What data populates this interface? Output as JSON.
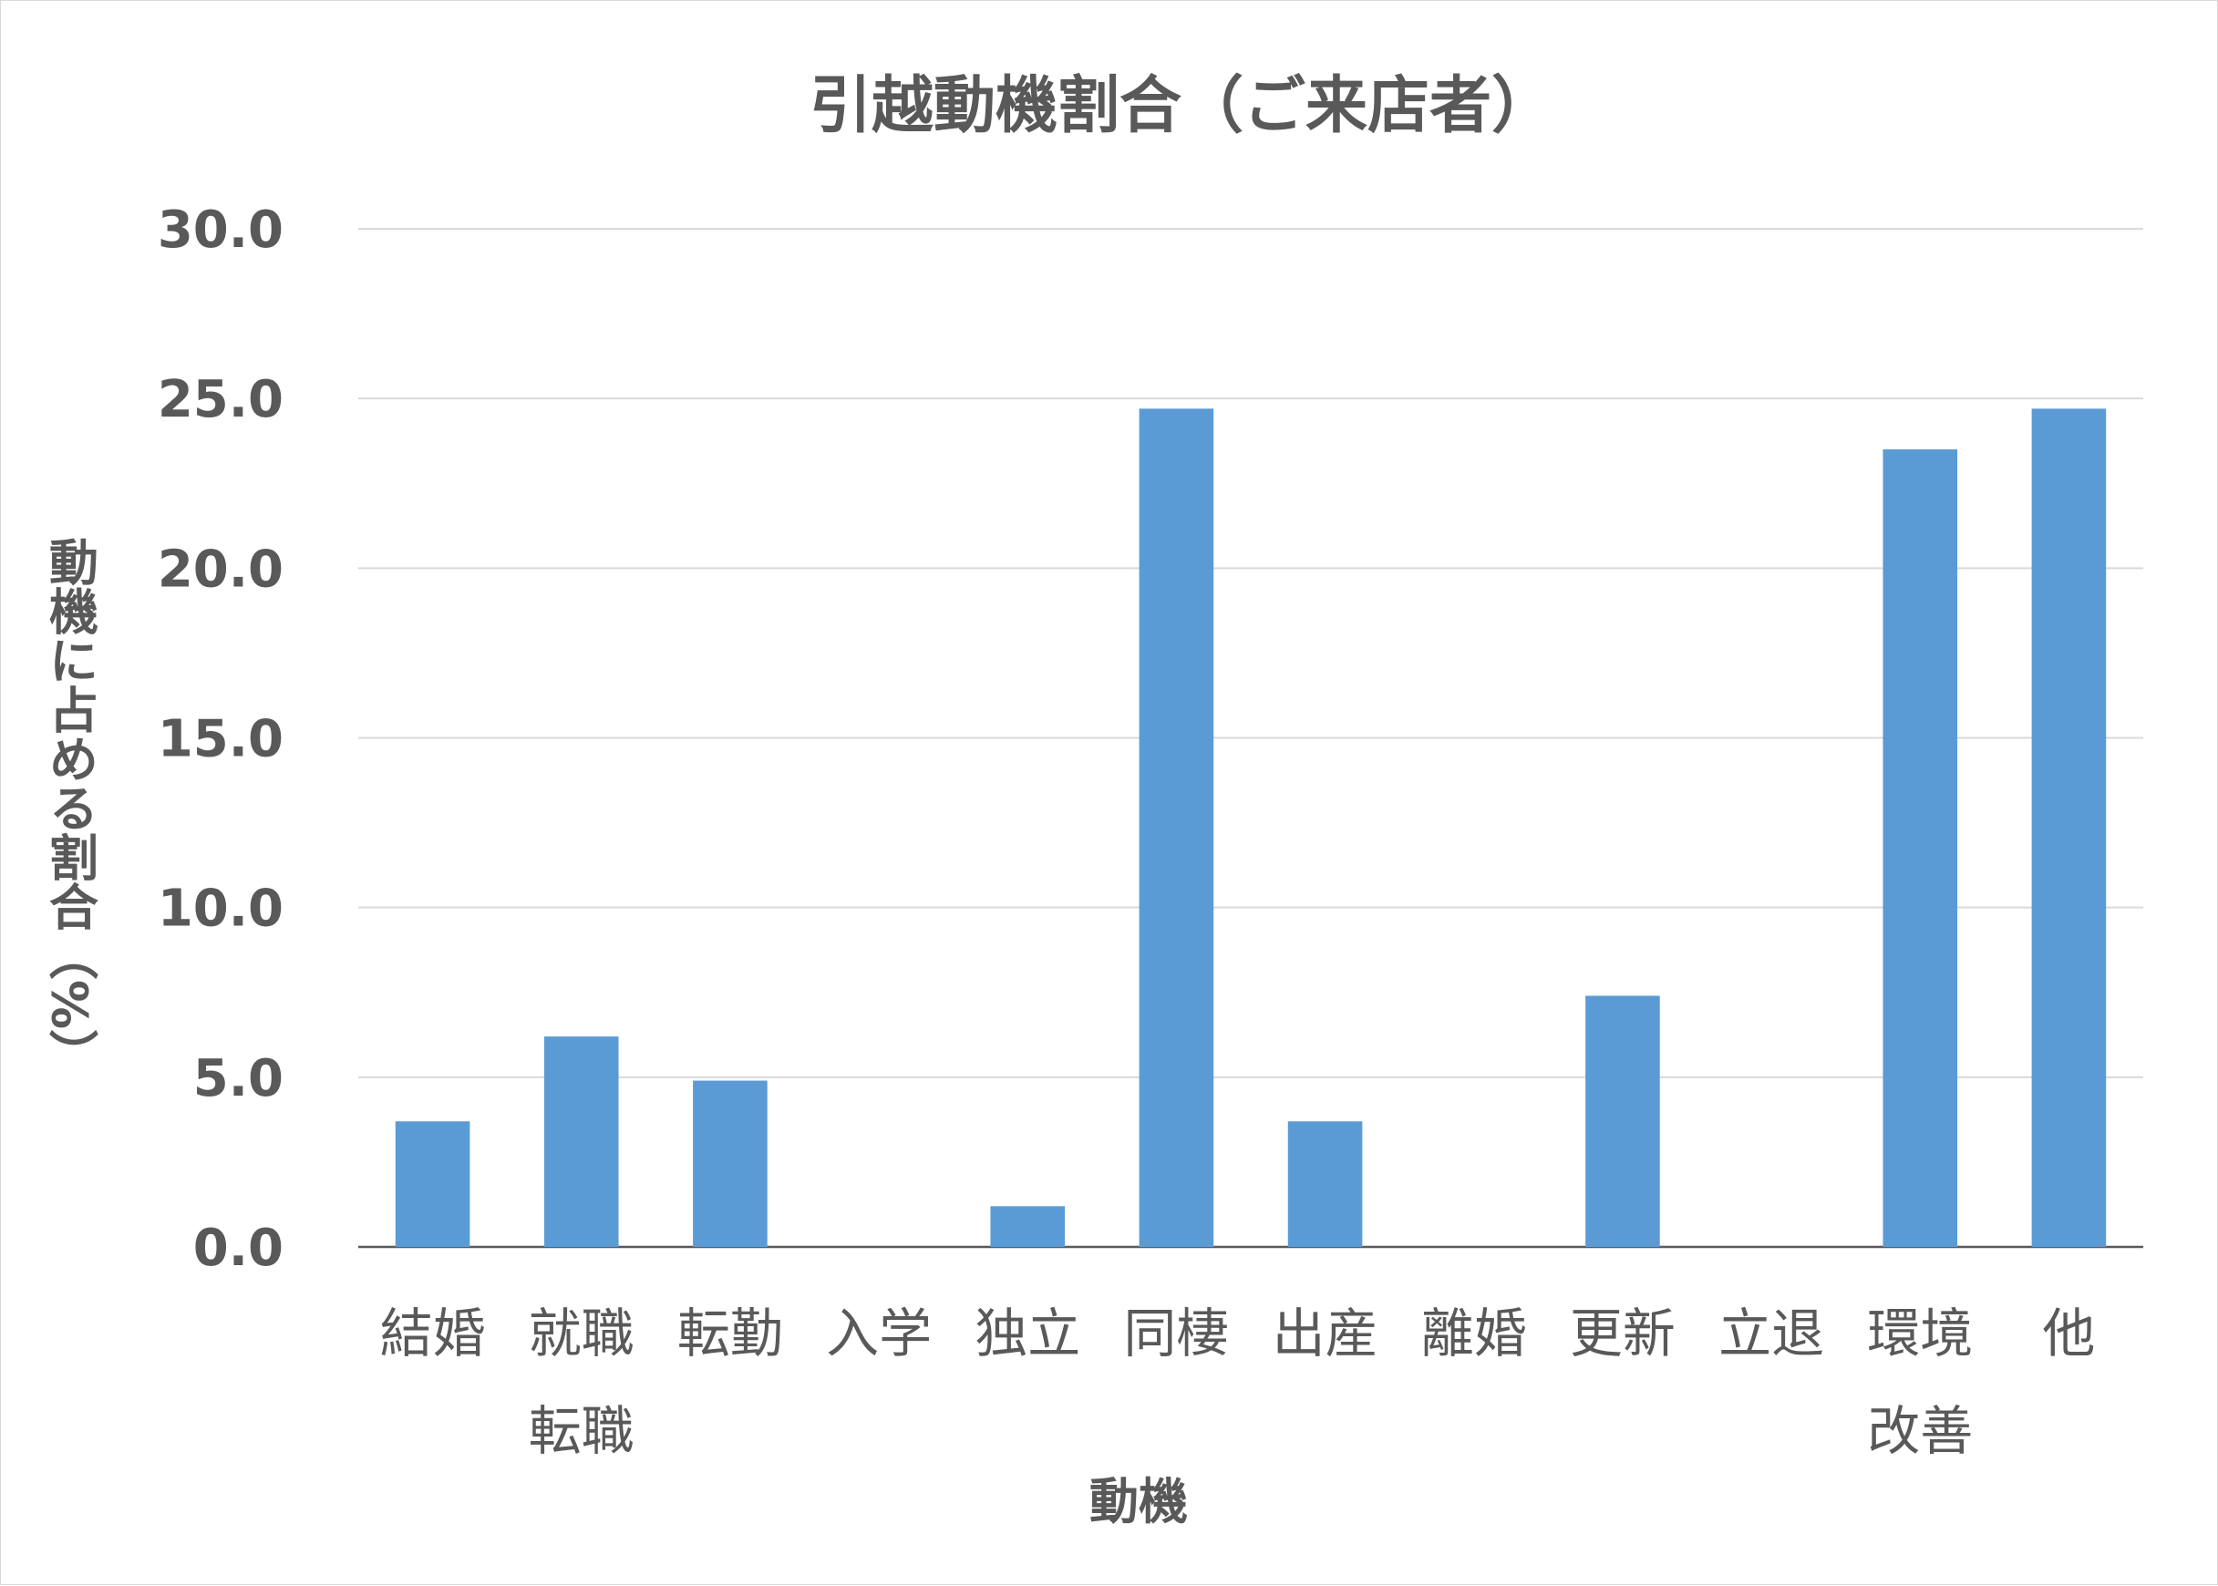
{
  "chart_data": {
    "type": "bar",
    "title": "引越動機割合（ご来店者）",
    "xlabel": "動機",
    "ylabel": "動機に占める割合（%）",
    "categories": [
      [
        "結婚"
      ],
      [
        "就職",
        "転職"
      ],
      [
        "転勤"
      ],
      [
        "入学"
      ],
      [
        "独立"
      ],
      [
        "同棲"
      ],
      [
        "出産"
      ],
      [
        "離婚"
      ],
      [
        "更新"
      ],
      [
        "立退"
      ],
      [
        "環境",
        "改善"
      ],
      [
        "他"
      ]
    ],
    "values": [
      3.7,
      6.2,
      4.9,
      0,
      1.2,
      24.7,
      3.7,
      0,
      7.4,
      0,
      23.5,
      24.7
    ],
    "ylim": [
      0,
      30
    ],
    "yticks": [
      "0.0",
      "5.0",
      "10.0",
      "15.0",
      "20.0",
      "25.0",
      "30.0"
    ],
    "grid": true,
    "legend": "none",
    "colors": {
      "bar": "#5b9bd5",
      "text": "#595959",
      "grid": "#d9d9d9"
    }
  }
}
